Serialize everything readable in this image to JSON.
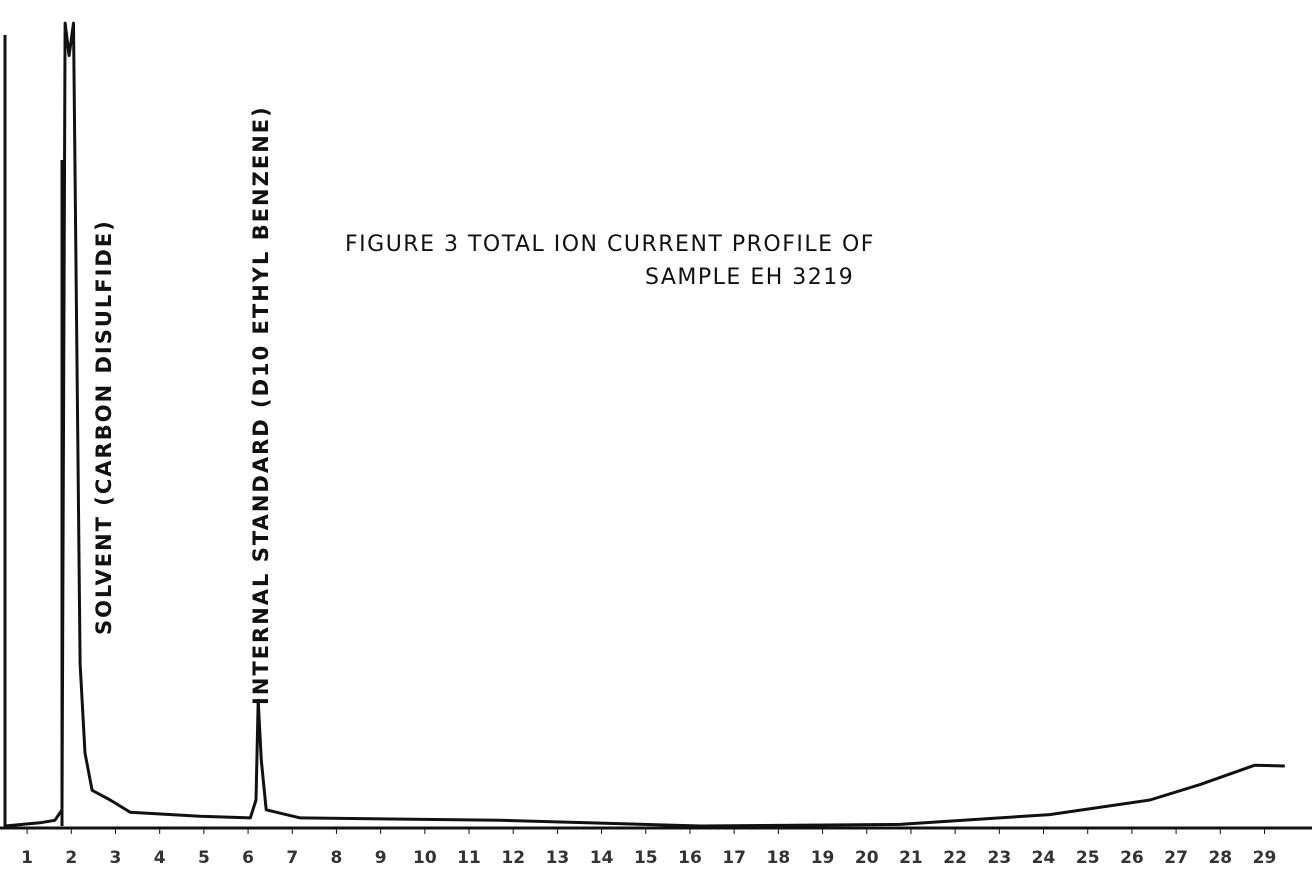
{
  "chart_data": {
    "type": "line",
    "title": "FIGURE 3   TOTAL ION CURRENT PROFILE OF",
    "subtitle": "SAMPLE EH 3219",
    "annotations": [
      "SOLVENT (CARBON DISULFIDE)",
      "INTERNAL STANDARD (D10 ETHYL BENZENE)"
    ],
    "x": [
      0.5,
      1.29,
      1.63,
      1.79,
      1.86,
      1.95,
      2.05,
      2.2,
      2.31,
      2.47,
      2.88,
      3.33,
      4.91,
      6.05,
      6.18,
      6.23,
      6.3,
      6.41,
      7.18,
      11.7,
      16.23,
      20.75,
      24.14,
      26.41,
      27.54,
      28.78,
      29.46
    ],
    "values": [
      0,
      0.4,
      0.7,
      2,
      99,
      95,
      99,
      20,
      9,
      4.4,
      3.2,
      1.7,
      1.2,
      1,
      3.2,
      15.5,
      8.1,
      2,
      1,
      0.7,
      0,
      0.2,
      1.4,
      3.2,
      5.1,
      7.5,
      7.4
    ],
    "color": "#111111",
    "xlim": [
      0.5,
      29.6
    ],
    "ylim": [
      0,
      100
    ],
    "xticks": [
      1,
      2,
      3,
      4,
      5,
      6,
      7,
      8,
      9,
      10,
      11,
      12,
      13,
      14,
      15,
      16,
      17,
      18,
      19,
      20,
      21,
      22,
      23,
      24,
      25,
      26,
      27,
      28,
      29
    ],
    "grid": false
  }
}
